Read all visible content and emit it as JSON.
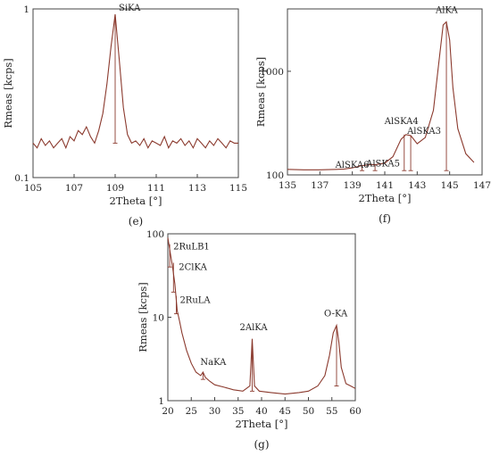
{
  "chart_data": [
    {
      "panel_label": "(e)",
      "type": "line",
      "xlabel": "2Theta [°]",
      "ylabel": "Rmeas [kcps]",
      "xlim": [
        105,
        115
      ],
      "ylim": [
        0.1,
        1
      ],
      "yscale": "log",
      "xticks": [
        105,
        107,
        109,
        111,
        113,
        115
      ],
      "yticks": [
        0.1,
        1
      ],
      "yticklabels": [
        "0.1",
        "1"
      ],
      "color": "#8b3a2e",
      "series": [
        {
          "x": [
            105.0,
            105.2,
            105.4,
            105.6,
            105.8,
            106.0,
            106.2,
            106.4,
            106.6,
            106.8,
            107.0,
            107.2,
            107.4,
            107.6,
            107.8,
            108.0,
            108.2,
            108.4,
            108.6,
            108.8,
            109.0,
            109.2,
            109.4,
            109.6,
            109.8,
            110.0,
            110.2,
            110.4,
            110.6,
            110.8,
            111.0,
            111.2,
            111.4,
            111.6,
            111.8,
            112.0,
            112.2,
            112.4,
            112.6,
            112.8,
            113.0,
            113.2,
            113.4,
            113.6,
            113.8,
            114.0,
            114.2,
            114.4,
            114.6,
            114.8,
            115.0
          ],
          "y": [
            0.16,
            0.15,
            0.17,
            0.155,
            0.165,
            0.15,
            0.16,
            0.17,
            0.15,
            0.175,
            0.165,
            0.19,
            0.18,
            0.2,
            0.175,
            0.16,
            0.19,
            0.24,
            0.36,
            0.6,
            0.93,
            0.5,
            0.26,
            0.18,
            0.16,
            0.165,
            0.155,
            0.17,
            0.15,
            0.165,
            0.16,
            0.155,
            0.175,
            0.15,
            0.165,
            0.16,
            0.17,
            0.155,
            0.165,
            0.15,
            0.17,
            0.16,
            0.15,
            0.165,
            0.155,
            0.17,
            0.16,
            0.15,
            0.165,
            0.16,
            0.16
          ]
        }
      ],
      "peaks": [
        {
          "label": "SiKA",
          "x": 109.0,
          "y_top": 0.93,
          "y_bottom": 0.16
        }
      ]
    },
    {
      "panel_label": "(f)",
      "type": "line",
      "xlabel": "2Theta [°]",
      "ylabel": "Rmeas [kcps]",
      "xlim": [
        135,
        147
      ],
      "ylim": [
        100,
        4000
      ],
      "yscale": "log",
      "xticks": [
        135,
        137,
        139,
        141,
        143,
        145,
        147
      ],
      "yticks": [
        100,
        1000
      ],
      "yticklabels": [
        "100",
        "1000"
      ],
      "color": "#8b3a2e",
      "series": [
        {
          "x": [
            135.0,
            136.0,
            137.0,
            138.0,
            138.5,
            139.0,
            139.5,
            140.0,
            140.5,
            141.0,
            141.5,
            142.0,
            142.3,
            142.6,
            143.0,
            143.5,
            144.0,
            144.3,
            144.6,
            144.8,
            145.0,
            145.2,
            145.5,
            146.0,
            146.5
          ],
          "y": [
            113,
            112,
            112,
            113,
            114,
            117,
            122,
            125,
            126,
            130,
            150,
            220,
            245,
            240,
            200,
            230,
            420,
            1100,
            2800,
            3000,
            2000,
            700,
            280,
            160,
            132
          ]
        }
      ],
      "peaks": [
        {
          "label": "AlSKA6",
          "x": 139.6,
          "y_top": 122,
          "y_bottom": 110
        },
        {
          "label": "AlSKA5",
          "x": 140.4,
          "y_top": 126,
          "y_bottom": 110
        },
        {
          "label": "AlSKA4",
          "x": 142.2,
          "y_top": 245,
          "y_bottom": 110
        },
        {
          "label": "AlSKA3",
          "x": 142.6,
          "y_top": 240,
          "y_bottom": 110
        },
        {
          "label": "AlKA",
          "x": 144.8,
          "y_top": 3000,
          "y_bottom": 110
        }
      ]
    },
    {
      "panel_label": "(g)",
      "type": "line",
      "xlabel": "2Theta [°]",
      "ylabel": "Rmeas [kcps]",
      "xlim": [
        20,
        60
      ],
      "ylim": [
        1,
        100
      ],
      "yscale": "log",
      "xticks": [
        20,
        25,
        30,
        35,
        40,
        45,
        50,
        55,
        60
      ],
      "yticks": [
        1,
        10,
        100
      ],
      "yticklabels": [
        "1",
        "10",
        "100"
      ],
      "color": "#8b3a2e",
      "series": [
        {
          "x": [
            20.0,
            20.5,
            21.0,
            21.5,
            22.0,
            22.5,
            23.0,
            24.0,
            25.0,
            26.0,
            27.0,
            27.5,
            28.0,
            29.0,
            30.0,
            32.0,
            34.0,
            36.0,
            37.5,
            38.0,
            38.5,
            39.5,
            42.0,
            45.0,
            48.0,
            50.0,
            52.0,
            53.5,
            54.5,
            55.3,
            56.0,
            56.5,
            57.0,
            58.0,
            59.0,
            60.0
          ],
          "y": [
            90,
            60,
            40,
            25,
            12,
            9,
            6.5,
            4.0,
            2.8,
            2.2,
            2.0,
            2.2,
            1.9,
            1.7,
            1.55,
            1.45,
            1.35,
            1.3,
            1.5,
            5.5,
            1.5,
            1.3,
            1.25,
            1.2,
            1.25,
            1.3,
            1.5,
            2.0,
            3.5,
            6.5,
            8.0,
            5.0,
            2.5,
            1.6,
            1.5,
            1.4
          ]
        }
      ],
      "peaks": [
        {
          "label": "2RuLB1",
          "x": 20.4,
          "y_top": 75,
          "y_bottom": 40
        },
        {
          "label": "2ClKA",
          "x": 21.2,
          "y_top": 45,
          "y_bottom": 20
        },
        {
          "label": "2RuLA",
          "x": 21.8,
          "y_top": 18,
          "y_bottom": 11
        },
        {
          "label": "NaKA",
          "x": 27.5,
          "y_top": 2.2,
          "y_bottom": 1.8
        },
        {
          "label": "2AlKA",
          "x": 38.0,
          "y_top": 5.5,
          "y_bottom": 1.3
        },
        {
          "label": "O-KA",
          "x": 56.0,
          "y_top": 8.0,
          "y_bottom": 1.5
        }
      ]
    }
  ]
}
